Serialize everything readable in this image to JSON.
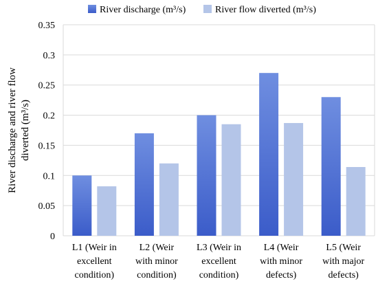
{
  "chart_data": {
    "type": "bar",
    "ylabel_lines": [
      "River discharge and river flow",
      "diverted (m³/s)"
    ],
    "ylim": [
      0,
      0.35
    ],
    "yticks": [
      "0",
      "0.05",
      "0.1",
      "0.15",
      "0.2",
      "0.25",
      "0.3",
      "0.35"
    ],
    "ytick_values": [
      0,
      0.05,
      0.1,
      0.15,
      0.2,
      0.25,
      0.3,
      0.35
    ],
    "grid": true,
    "legend_position": "top",
    "categories": [
      [
        "L1 (Weir in",
        "excellent",
        "condition)"
      ],
      [
        "L2 (Weir",
        "with minor",
        "condition)"
      ],
      [
        "L3 (Weir in",
        "excellent",
        "condition)"
      ],
      [
        "L4 (Weir",
        "with minor",
        "defects)"
      ],
      [
        "L5 (Weir",
        "with major",
        "defects)"
      ]
    ],
    "series": [
      {
        "name": "River discharge (m³/s)",
        "color": "#4a6bd1",
        "color_light": "#6f8ee0",
        "values": [
          0.1,
          0.17,
          0.2,
          0.27,
          0.23
        ]
      },
      {
        "name": "River flow diverted (m³/s)",
        "color": "#b4c5e8",
        "values": [
          0.082,
          0.12,
          0.185,
          0.187,
          0.114
        ]
      }
    ]
  }
}
